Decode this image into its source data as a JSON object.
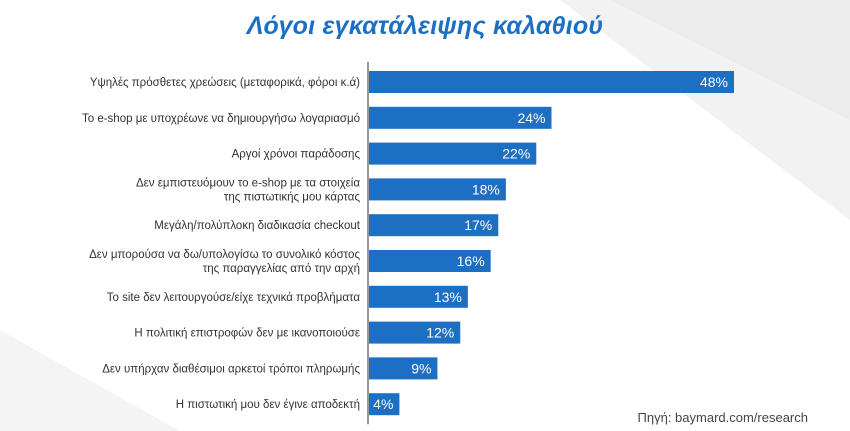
{
  "chart_data": {
    "type": "bar",
    "orientation": "horizontal",
    "title": "Λόγοι εγκατάλειψης καλαθιού",
    "categories": [
      [
        "Υψηλές πρόσθετες χρεώσεις (μεταφορικά, φόροι κ.ά)"
      ],
      [
        "Το e-shop με υποχρέωνε να δημιουργήσω λογαριασμό"
      ],
      [
        "Αργοί χρόνοι παράδοσης"
      ],
      [
        "Δεν εμπιστευόμουν το e-shop με τα στοιχεία",
        "της πιστωτικής μου κάρτας"
      ],
      [
        "Μεγάλη/πολύπλοκη διαδικασία checkout"
      ],
      [
        "Δεν μπορούσα να δω/υπολογίσω το συνολικό κόστος",
        "της παραγγελίας από την αρχή"
      ],
      [
        "Το site δεν λειτουργούσε/είχε τεχνικά προβλήματα"
      ],
      [
        "Η πολιτική επιστροφών δεν με ικανοποιούσε"
      ],
      [
        "Δεν υπήρχαν διαθέσιμοι αρκετοί τρόποι πληρωμής"
      ],
      [
        "Η πιστωτική μου δεν έγινε αποδεκτή"
      ]
    ],
    "values": [
      48,
      24,
      22,
      18,
      17,
      16,
      13,
      12,
      9,
      4
    ],
    "value_labels": [
      "48%",
      "24%",
      "22%",
      "18%",
      "17%",
      "16%",
      "13%",
      "12%",
      "9%",
      "4%"
    ],
    "value_unit": "%",
    "xlim": [
      0,
      48
    ],
    "bar_color": "#1c6fc2",
    "label_color": "#ffffff",
    "grid": false,
    "legend": "none"
  },
  "source": "Πηγή: baymard.com/research",
  "colors": {
    "title": "#1c6fc2",
    "axis_line": "#333333",
    "category_text": "#333333"
  }
}
